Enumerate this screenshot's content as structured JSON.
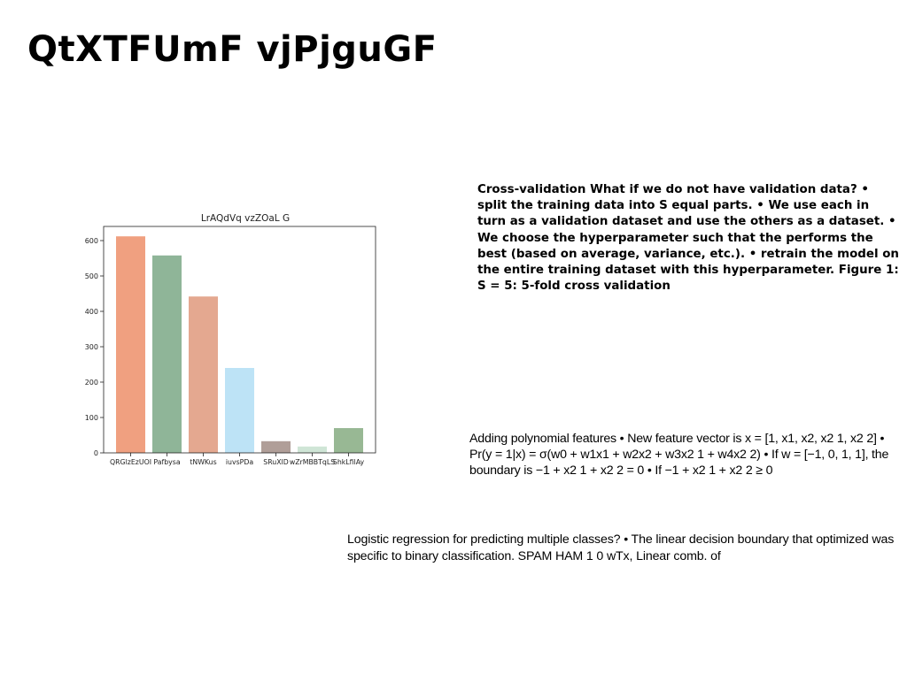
{
  "page": {
    "title": "QtXTFUmF vjPjguGF"
  },
  "paragraphs": {
    "cross_validation": "Cross-validation What if we do not have validation data? • split the training data into S equal parts. • We use each in turn as a validation dataset and use the others as a dataset. • We choose the hyperparameter such that the performs the best (based on average, variance, etc.). • retrain the model on the entire training dataset with this hyperparameter. Figure 1: S = 5: 5-fold cross validation",
    "polynomial_features": "Adding polynomial features • New feature vector is x = [1, x1, x2, x2 1, x2 2] • Pr(y = 1|x) = σ(w0 + w1x1 + w2x2 + w3x2 1 + w4x2 2) • If w = [−1, 0, 1, 1], the boundary is −1 + x2 1 + x2 2 = 0 • If −1 + x2 1 + x2 2 ≥ 0",
    "logistic_regression": "Logistic regression for predicting multiple classes? • The linear decision boundary that optimized was specific to binary classification. SPAM HAM 1 0 wTx, Linear comb. of"
  },
  "chart_data": {
    "type": "bar",
    "title": "LrAQdVq vzZOaL G",
    "xlabel": "",
    "ylabel": "",
    "categories": [
      "QRGlzEzUOI",
      "Pafbysa",
      "tNWKus",
      "iuvsPDa",
      "SRuXlD",
      "wZrMBBTqLS",
      "ShkLfilAy"
    ],
    "values": [
      612,
      558,
      442,
      240,
      33,
      18,
      70
    ],
    "colors": [
      "#f0a080",
      "#8fb598",
      "#e4a890",
      "#bde3f6",
      "#b09e98",
      "#cfe5d6",
      "#98b894"
    ],
    "ylim": [
      0,
      640
    ],
    "yticks": [
      0,
      100,
      200,
      300,
      400,
      500,
      600
    ],
    "grid": false
  }
}
